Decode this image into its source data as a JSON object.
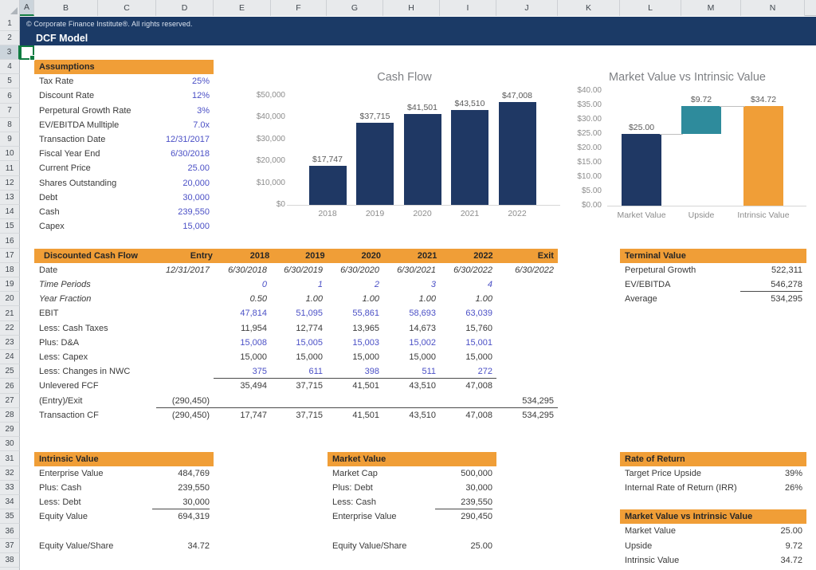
{
  "sheet": {
    "columns": [
      "A",
      "B",
      "C",
      "D",
      "E",
      "F",
      "G",
      "H",
      "I",
      "J",
      "K",
      "L",
      "M",
      "N"
    ],
    "row_count": 39,
    "selected_cell": "A3"
  },
  "header": {
    "copyright": "© Corporate Finance Institute®. All rights reserved.",
    "title": "DCF Model"
  },
  "colors": {
    "navy": "#1B3A66",
    "bar_navy": "#1F3864",
    "teal": "#2E8B9C",
    "orange": "#F09E37",
    "input_blue": "#4B50C6",
    "selection_green": "#107C41"
  },
  "assumptions": {
    "title": "Assumptions",
    "value_color": "blue",
    "items": [
      {
        "label": "Tax Rate",
        "value": "25%"
      },
      {
        "label": "Discount Rate",
        "value": "12%"
      },
      {
        "label": "Perpetural Growth Rate",
        "value": "3%"
      },
      {
        "label": "EV/EBITDA Mulltiple",
        "value": "7.0x"
      },
      {
        "label": "Transaction Date",
        "value": "12/31/2017"
      },
      {
        "label": "Fiscal Year End",
        "value": "6/30/2018"
      },
      {
        "label": "Current Price",
        "value": "25.00"
      },
      {
        "label": "Shares Outstanding",
        "value": "20,000"
      },
      {
        "label": "Debt",
        "value": "30,000"
      },
      {
        "label": "Cash",
        "value": "239,550"
      },
      {
        "label": "Capex",
        "value": "15,000"
      }
    ]
  },
  "chart_data": [
    {
      "type": "bar",
      "title": "Cash Flow",
      "categories": [
        "2018",
        "2019",
        "2020",
        "2021",
        "2022"
      ],
      "values": [
        17747,
        37715,
        41501,
        43510,
        47008
      ],
      "data_labels": [
        "$17,747",
        "$37,715",
        "$41,501",
        "$43,510",
        "$47,008"
      ],
      "y_ticks": [
        "$0",
        "$10,000",
        "$20,000",
        "$30,000",
        "$40,000",
        "$50,000"
      ],
      "ylim": [
        0,
        50000
      ],
      "bar_color": "#1F3864",
      "gridlines": false,
      "legend": "none"
    },
    {
      "type": "waterfall",
      "title": "Market Value vs Intrinsic Value",
      "categories": [
        "Market Value",
        "Upside",
        "Intrinsic Value"
      ],
      "bars": [
        {
          "category": "Market Value",
          "value": 25.0,
          "base": 0,
          "label": "$25.00",
          "color": "#1F3864"
        },
        {
          "category": "Upside",
          "value": 9.72,
          "base": 25.0,
          "label": "$9.72",
          "color": "#2E8B9C"
        },
        {
          "category": "Intrinsic Value",
          "value": 34.72,
          "base": 0,
          "label": "$34.72",
          "color": "#F09E37"
        }
      ],
      "y_ticks": [
        "$0.00",
        "$5.00",
        "$10.00",
        "$15.00",
        "$20.00",
        "$25.00",
        "$30.00",
        "$35.00",
        "$40.00"
      ],
      "ylim": [
        0,
        40
      ],
      "legend": "none"
    }
  ],
  "dcf": {
    "title": "Discounted Cash Flow",
    "col_headers": [
      "Entry",
      "2018",
      "2019",
      "2020",
      "2021",
      "2022",
      "Exit"
    ],
    "rows": [
      {
        "label": "Date",
        "values_italic": true,
        "values": [
          "12/31/2017",
          "6/30/2018",
          "6/30/2019",
          "6/30/2020",
          "6/30/2021",
          "6/30/2022",
          "6/30/2022"
        ]
      },
      {
        "label": "Time Periods",
        "label_italic": true,
        "values_italic": true,
        "blue": true,
        "values": [
          "",
          "0",
          "1",
          "2",
          "3",
          "4",
          ""
        ]
      },
      {
        "label": "Year Fraction",
        "label_italic": true,
        "values_italic": true,
        "values": [
          "",
          "0.50",
          "1.00",
          "1.00",
          "1.00",
          "1.00",
          ""
        ]
      },
      {
        "label": "EBIT",
        "blue": true,
        "values": [
          "",
          "47,814",
          "51,095",
          "55,861",
          "58,693",
          "63,039",
          ""
        ]
      },
      {
        "label": "Less: Cash Taxes",
        "values": [
          "",
          "11,954",
          "12,774",
          "13,965",
          "14,673",
          "15,760",
          ""
        ]
      },
      {
        "label": "Plus: D&A",
        "blue": true,
        "values": [
          "",
          "15,008",
          "15,005",
          "15,003",
          "15,002",
          "15,001",
          ""
        ]
      },
      {
        "label": "Less: Capex",
        "values": [
          "",
          "15,000",
          "15,000",
          "15,000",
          "15,000",
          "15,000",
          ""
        ]
      },
      {
        "label": "Less: Changes in NWC",
        "blue": true,
        "underline": [
          1,
          5
        ],
        "values": [
          "",
          "375",
          "611",
          "398",
          "511",
          "272",
          ""
        ]
      },
      {
        "label": "Unlevered FCF",
        "values": [
          "",
          "35,494",
          "37,715",
          "41,501",
          "43,510",
          "47,008",
          ""
        ]
      },
      {
        "label": "(Entry)/Exit",
        "underline": [
          0,
          6
        ],
        "values": [
          "(290,450)",
          "",
          "",
          "",
          "",
          "",
          "534,295"
        ]
      },
      {
        "label": "Transaction CF",
        "values": [
          "(290,450)",
          "17,747",
          "37,715",
          "41,501",
          "43,510",
          "47,008",
          "534,295"
        ]
      }
    ]
  },
  "terminal_value": {
    "title": "Terminal Value",
    "items": [
      {
        "label": "Perpetural Growth",
        "value": "522,311"
      },
      {
        "label": "EV/EBITDA",
        "value": "546,278",
        "underline": true
      },
      {
        "label": "Average",
        "value": "534,295"
      }
    ]
  },
  "intrinsic_value": {
    "title": "Intrinsic Value",
    "items": [
      {
        "label": "Enterprise Value",
        "value": "484,769"
      },
      {
        "label": "Plus: Cash",
        "value": "239,550"
      },
      {
        "label": "Less: Debt",
        "value": "30,000",
        "underline": true
      },
      {
        "label": "Equity Value",
        "value": "694,319"
      },
      {
        "label": "Equity Value/Share",
        "value": "34.72",
        "gap_before": true
      }
    ]
  },
  "market_value": {
    "title": "Market Value",
    "items": [
      {
        "label": "Market Cap",
        "value": "500,000"
      },
      {
        "label": "Plus: Debt",
        "value": "30,000"
      },
      {
        "label": "Less: Cash",
        "value": "239,550",
        "underline": true
      },
      {
        "label": "Enterprise Value",
        "value": "290,450"
      },
      {
        "label": "Equity Value/Share",
        "value": "25.00",
        "gap_before": true
      }
    ]
  },
  "rate_of_return": {
    "title": "Rate of Return",
    "items": [
      {
        "label": "Target Price Upside",
        "value": "39%"
      },
      {
        "label": "Internal Rate of Return (IRR)",
        "value": "26%"
      }
    ]
  },
  "mv_vs_iv": {
    "title": "Market Value vs Intrinsic Value",
    "items": [
      {
        "label": "Market Value",
        "value": "25.00"
      },
      {
        "label": "Upside",
        "value": "9.72"
      },
      {
        "label": "Intrinsic Value",
        "value": "34.72"
      }
    ]
  }
}
